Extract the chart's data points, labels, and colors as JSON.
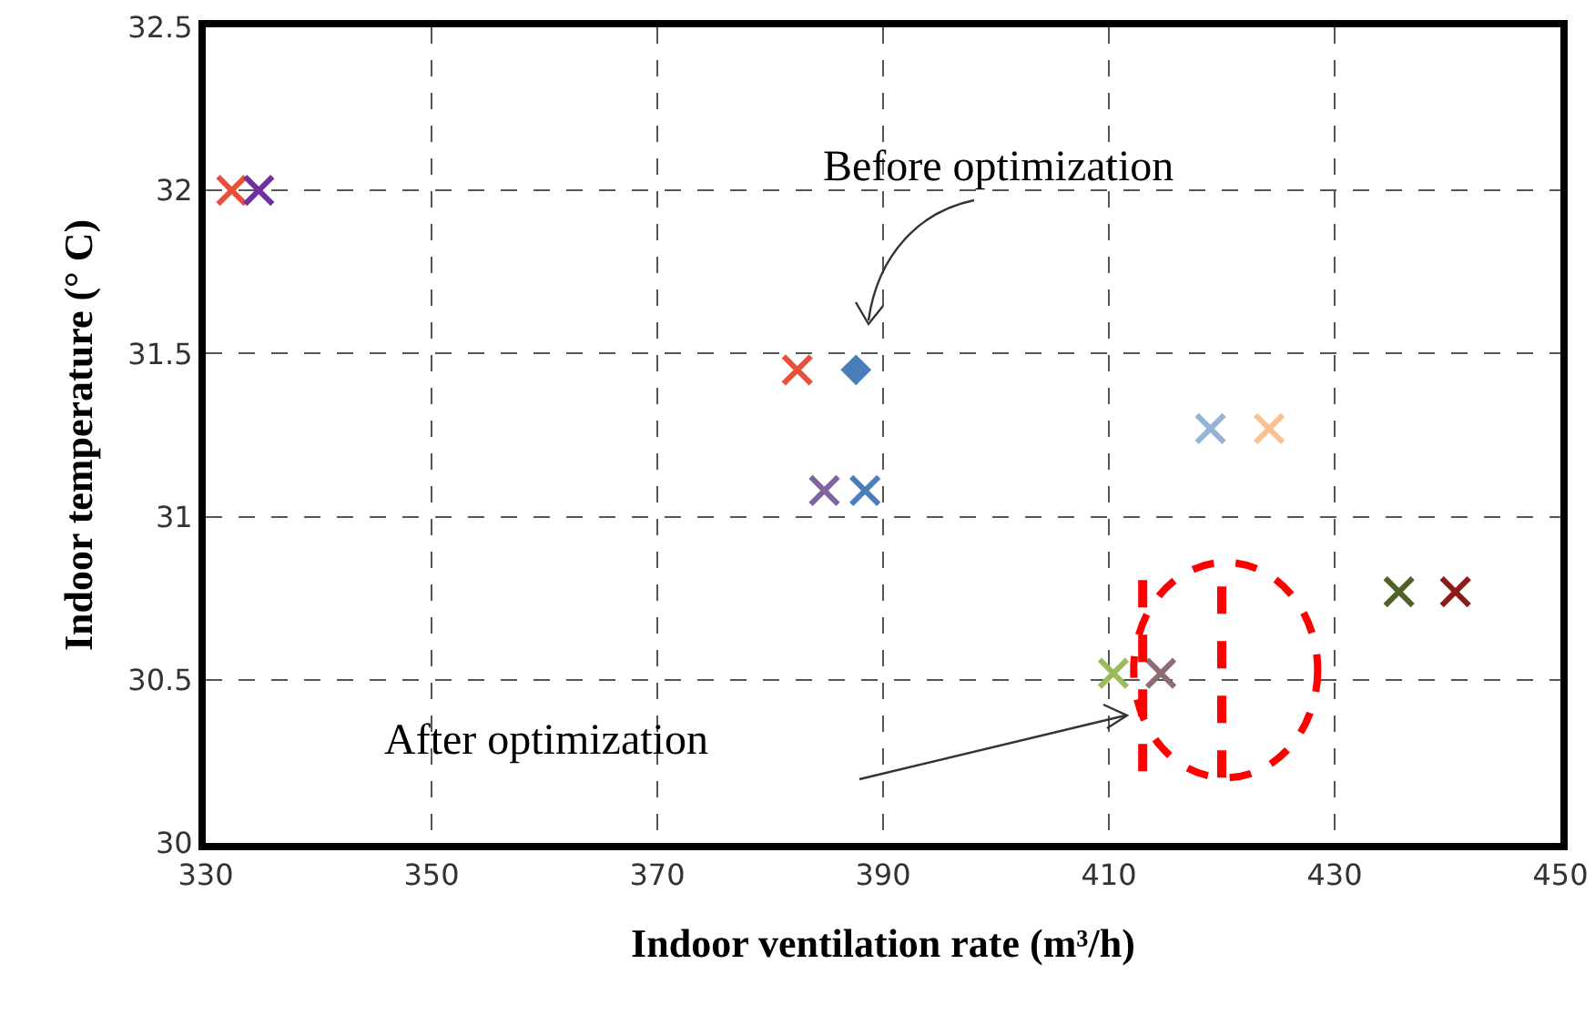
{
  "chart_data": {
    "type": "scatter",
    "xlabel": "Indoor ventilation rate (m³/h)",
    "ylabel": "Indoor temperature (° C)",
    "xlim": [
      330,
      450
    ],
    "xticks": [
      330,
      350,
      370,
      390,
      410,
      430,
      450
    ],
    "ylim": [
      30,
      32.5
    ],
    "yticks": [
      30,
      30.5,
      31,
      31.5,
      32,
      32.5
    ],
    "grid": true,
    "marker": "cross",
    "series": [
      {
        "color": "#e8503a",
        "x": [
          332.3
        ],
        "values": [
          32.0
        ]
      },
      {
        "color": "#7030a0",
        "x": [
          334.7
        ],
        "values": [
          32.0
        ]
      },
      {
        "color": "#e8503a",
        "x": [
          382.4
        ],
        "values": [
          31.45
        ]
      },
      {
        "color": "#4a7ebb",
        "x": [
          387.6
        ],
        "values": [
          31.45
        ],
        "marker": "diamond"
      },
      {
        "color": "#8064a2",
        "x": [
          384.8
        ],
        "values": [
          31.08
        ]
      },
      {
        "color": "#4a7ebb",
        "x": [
          388.4
        ],
        "values": [
          31.08
        ]
      },
      {
        "color": "#95b3d7",
        "x": [
          419.0
        ],
        "values": [
          31.27
        ]
      },
      {
        "color": "#fac090",
        "x": [
          424.2
        ],
        "values": [
          31.27
        ]
      },
      {
        "color": "#4f6228",
        "x": [
          435.7
        ],
        "values": [
          30.77
        ]
      },
      {
        "color": "#8b1a1a",
        "x": [
          440.7
        ],
        "values": [
          30.77
        ]
      },
      {
        "color": "#9bbb59",
        "x": [
          410.4
        ],
        "values": [
          30.52
        ]
      },
      {
        "color": "#8c6d72",
        "x": [
          414.6
        ],
        "values": [
          30.52
        ]
      }
    ],
    "annotations": [
      "Before optimization",
      "After optimization"
    ]
  }
}
